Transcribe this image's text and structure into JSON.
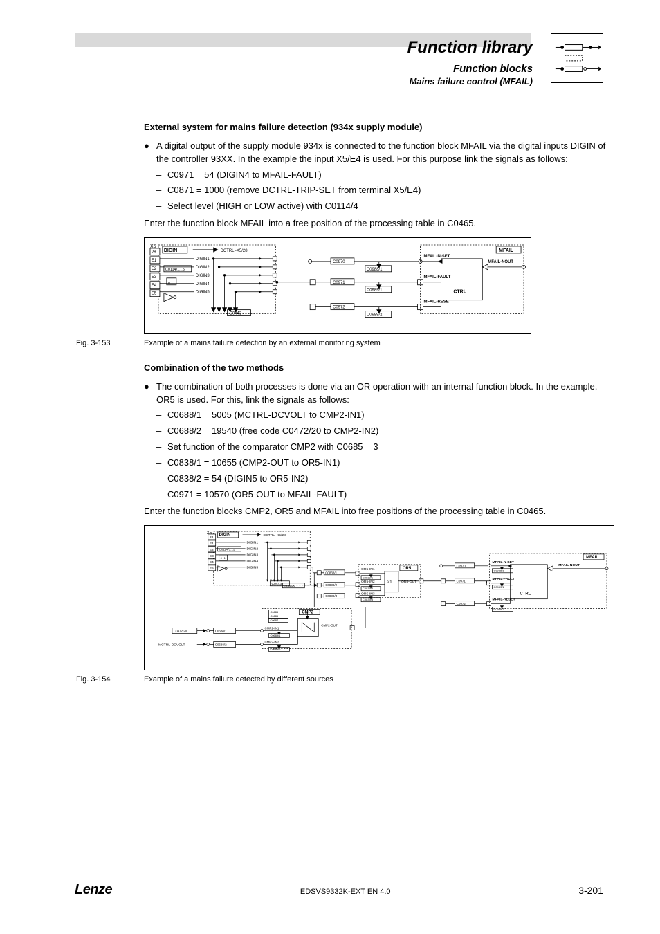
{
  "header": {
    "title_main": "Function library",
    "title_sub1": "Function blocks",
    "title_sub2": "Mains failure control (MFAIL)"
  },
  "section1": {
    "heading": "External system for mains failure detection (934x supply module)",
    "bullet": "A digital output of the supply module 934x is connected to the function block MFAIL via the digital inputs DIGIN of the controller 93XX. In the example the input X5/E4 is used. For this purpose link the signals as follows:",
    "subs": [
      "C0971 = 54 (DIGIN4 to MFAIL-FAULT)",
      "C0871 = 1000 (remove DCTRL-TRIP-SET from terminal X5/E4)",
      "Select level (HIGH or LOW active) with C0114/4"
    ],
    "after": "Enter the function block MFAIL into a free position of the processing table in C0465."
  },
  "fig1": {
    "label": "Fig. 3-153",
    "caption": "Example of a mains failure detection by an external monitoring system",
    "d": {
      "x5": "X5",
      "digin_title": "DIGIN",
      "dctrl": "DCTRL -X5/28",
      "rows": [
        "28",
        "E1",
        "E2",
        "E3",
        "E4",
        "E5"
      ],
      "digins": [
        "DIGIN1",
        "DIGIN2",
        "DIGIN3",
        "DIGIN4",
        "DIGIN5"
      ],
      "c0114": "C0114/1...5",
      "c0443": "C0443",
      "mfail": "MFAIL",
      "nset": "MFAIL-N-SET",
      "nout": "MFAIL-NOUT",
      "fault": "MFAIL-FAULT",
      "reset": "MFAIL-RESET",
      "ctrl": "CTRL",
      "c0970": "C0970",
      "c0988": "C0988/1",
      "c0971": "C0971",
      "c0989a": "C0989/1",
      "c0972": "C0972",
      "c0989b": "C0989/2"
    }
  },
  "section2": {
    "heading": "Combination of the two methods",
    "bullet": "The combination of both processes is done via an OR operation with an internal function block. In the example, OR5 is used. For this, link the signals as follows:",
    "subs": [
      "C0688/1 = 5005 (MCTRL-DCVOLT to CMP2-IN1)",
      "C0688/2 = 19540 (free code C0472/20 to CMP2-IN2)",
      "Set function of the comparator CMP2 with C0685 = 3",
      "C0838/1 = 10655 (CMP2-OUT to OR5-IN1)",
      "C0838/2 = 54 (DIGIN5 to OR5-IN2)",
      "C0971 = 10570 (OR5-OUT to MFAIL-FAULT)"
    ],
    "after": "Enter the function blocks CMP2, OR5 and MFAIL into free positions of the processing table in C0465."
  },
  "fig2": {
    "label": "Fig. 3-154",
    "caption": "Example of a mains failure detected by different sources",
    "d": {
      "x5": "X5",
      "digin_title": "DIGIN",
      "dctrl": "DCTRL -X5/28",
      "rows": [
        "28",
        "E1",
        "E2",
        "E3",
        "E4",
        "E5"
      ],
      "digins": [
        "DIGIN1",
        "DIGIN2",
        "DIGIN3",
        "DIGIN4",
        "DIGIN5"
      ],
      "c0114": "C0114/1...5",
      "c0443": "C0443",
      "or5": "OR5",
      "or5in1": "OR5-IN1",
      "or5in2": "OR5-IN2",
      "or5in3": "OR5-IN3",
      "or5out": "OR5-OUT",
      "c0838a": "C0838/1",
      "c0838b": "C0838/2",
      "c0838c": "C0838/3",
      "c0839a": "C0839/1",
      "c0839b": "C0839/2",
      "c0839c": "C0839/3",
      "fixed0": "FIXED0",
      "cmp2": "CMP2",
      "cmp2in1": "CMP2-IN1",
      "cmp2in2": "CMP2-IN2",
      "cmp2out": "CMP2-OUT",
      "c0685": "C0685",
      "c0686": "C0686",
      "c0687": "C0687",
      "c0472": "C0472/20",
      "c0688a": "C0688/1",
      "c0688b": "C0688/2",
      "c0689a": "C0689/1",
      "c0689b": "C0689/2",
      "mctrl": "MCTRL-DCVOLT",
      "mfail": "MFAIL",
      "nset": "MFAIL-N-SET",
      "nout": "MFAIL-NOUT",
      "fault": "MFAIL-FAULT",
      "reset": "MFAIL-RESET",
      "ctrl": "CTRL",
      "c0970": "C0970",
      "c0988": "C0988/1",
      "c0971": "C0971",
      "c0989a": "C0989/1",
      "c0972": "C0972",
      "c0989b": "C0989/2",
      "gte": "≥1"
    }
  },
  "footer": {
    "brand": "Lenze",
    "doc": "EDSVS9332K-EXT EN 4.0",
    "page": "3-201"
  },
  "style": {
    "stroke": "#000000",
    "bg": "#ffffff",
    "font_tiny": 6,
    "font_small": 7,
    "font_body": 13
  }
}
